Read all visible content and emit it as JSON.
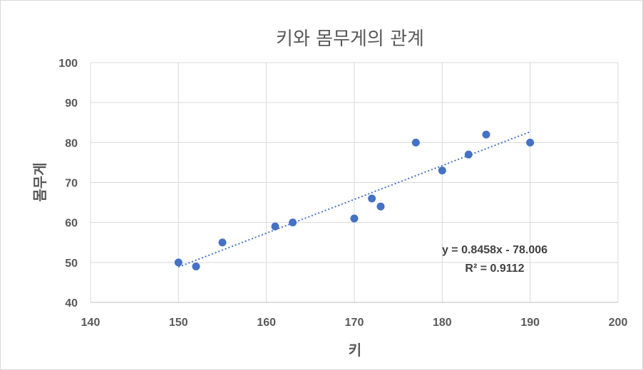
{
  "chart_data": {
    "type": "scatter",
    "title": "키와 몸무게의 관계",
    "xlabel": "키",
    "ylabel": "몸무게",
    "xlim": [
      140,
      200
    ],
    "ylim": [
      40,
      100
    ],
    "x_ticks": [
      140,
      150,
      160,
      170,
      180,
      190,
      200
    ],
    "y_ticks": [
      40,
      50,
      60,
      70,
      80,
      90,
      100
    ],
    "grid": true,
    "legend": "none",
    "series": [
      {
        "points": [
          {
            "x": 150,
            "y": 50
          },
          {
            "x": 152,
            "y": 49
          },
          {
            "x": 155,
            "y": 55
          },
          {
            "x": 161,
            "y": 59
          },
          {
            "x": 163,
            "y": 60
          },
          {
            "x": 170,
            "y": 61
          },
          {
            "x": 172,
            "y": 66
          },
          {
            "x": 173,
            "y": 64
          },
          {
            "x": 177,
            "y": 80
          },
          {
            "x": 180,
            "y": 73
          },
          {
            "x": 183,
            "y": 77
          },
          {
            "x": 185,
            "y": 82
          },
          {
            "x": 190,
            "y": 80
          }
        ],
        "color": "#4472c4"
      }
    ],
    "trendline": {
      "type": "linear",
      "slope": 0.8458,
      "intercept": -78.006,
      "x_range": [
        150,
        190
      ],
      "equation_label": "y = 0.8458x - 78.006",
      "r2_label": "R² = 0.9112"
    }
  }
}
